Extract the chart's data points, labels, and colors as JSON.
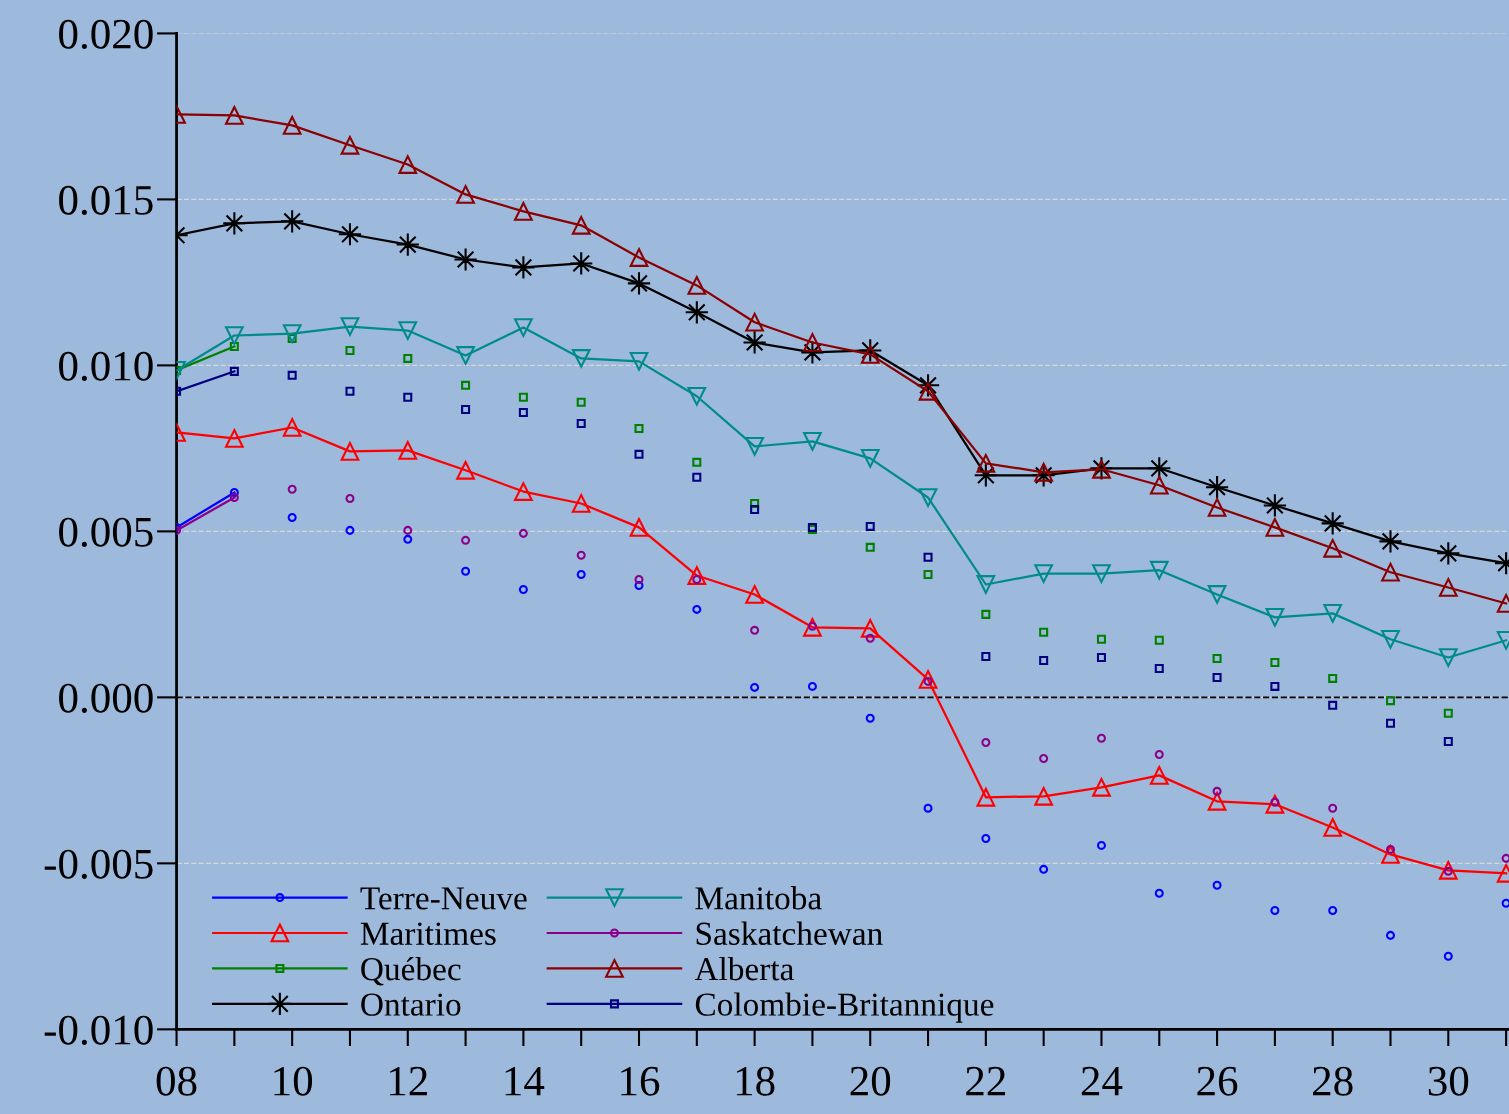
{
  "chart_data": {
    "type": "line",
    "x": [
      8,
      9,
      10,
      11,
      12,
      13,
      14,
      15,
      16,
      17,
      18,
      19,
      20,
      21,
      22,
      23,
      24,
      25,
      26,
      27,
      28,
      29,
      30,
      31
    ],
    "xlim": [
      8,
      31.05
    ],
    "xticks": [
      {
        "value": 8,
        "label": "08"
      },
      {
        "value": 10,
        "label": "10"
      },
      {
        "value": 12,
        "label": "12"
      },
      {
        "value": 14,
        "label": "14"
      },
      {
        "value": 16,
        "label": "16"
      },
      {
        "value": 18,
        "label": "18"
      },
      {
        "value": 20,
        "label": "20"
      },
      {
        "value": 22,
        "label": "22"
      },
      {
        "value": 24,
        "label": "24"
      },
      {
        "value": 26,
        "label": "26"
      },
      {
        "value": 28,
        "label": "28"
      },
      {
        "value": 30,
        "label": "30"
      }
    ],
    "ylim": [
      -0.01,
      0.02
    ],
    "yticks": [
      {
        "value": -0.01,
        "label": "-0.010"
      },
      {
        "value": -0.005,
        "label": "-0.005"
      },
      {
        "value": 0.0,
        "label": "0.000"
      },
      {
        "value": 0.005,
        "label": "0.005"
      },
      {
        "value": 0.01,
        "label": "0.010"
      },
      {
        "value": 0.015,
        "label": "0.015"
      },
      {
        "value": 0.02,
        "label": "0.020"
      }
    ],
    "grid": "y",
    "legend": "bottom left",
    "ref_lines": [
      {
        "axis": "y",
        "value": 0.0,
        "color": "#000000",
        "line_style": "dashed"
      }
    ],
    "series": [
      {
        "name": "Terre-Neuve",
        "color": "#0000ff",
        "marker": "circle",
        "values": [
          0.00512,
          0.00617,
          null,
          null,
          null,
          null,
          null,
          null,
          null,
          null,
          null,
          null,
          null,
          null,
          null,
          null,
          null,
          null,
          null,
          null,
          null,
          null,
          null,
          null
        ]
      },
      {
        "type": "scatter",
        "color": "#0000ff",
        "marker": "circle",
        "values": [
          null,
          null,
          0.00542,
          0.00503,
          0.00476,
          0.0038,
          0.00325,
          0.0037,
          0.00337,
          0.00265,
          0.0003,
          0.00033,
          -0.00063,
          -0.00334,
          -0.00425,
          -0.00518,
          -0.00446,
          -0.0059,
          -0.00566,
          -0.00642,
          -0.00642,
          -0.00717,
          -0.0078,
          -0.0062
        ]
      },
      {
        "name": "Maritimes",
        "color": "#ff0000",
        "marker": "triangle",
        "values": [
          0.00798,
          0.0078,
          0.00813,
          0.00741,
          0.00744,
          0.00684,
          0.0062,
          0.00584,
          0.00512,
          0.00367,
          0.0031,
          0.00211,
          0.00208,
          0.00054,
          -0.00301,
          -0.00298,
          -0.00271,
          -0.00235,
          -0.00313,
          -0.00322,
          -0.00392,
          -0.00473,
          -0.00521,
          -0.0053
        ]
      },
      {
        "name": "Québec",
        "color": "#008000",
        "marker": "square",
        "values": [
          0.00985,
          0.01057,
          null,
          null,
          null,
          null,
          null,
          null,
          null,
          null,
          null,
          null,
          null,
          null,
          null,
          null,
          null,
          null,
          null,
          null,
          null,
          null,
          null,
          null
        ]
      },
      {
        "type": "scatter",
        "color": "#008000",
        "marker": "square",
        "values": [
          null,
          null,
          0.01081,
          0.01045,
          0.01021,
          0.0094,
          0.00904,
          0.00889,
          0.0081,
          0.00708,
          0.00584,
          0.00506,
          0.00452,
          0.0037,
          0.0025,
          0.00196,
          0.00175,
          0.00172,
          0.00117,
          0.00105,
          0.00057,
          -0.0001,
          -0.00048,
          null
        ]
      },
      {
        "name": "Ontario",
        "color": "#000000",
        "marker": "star",
        "values": [
          0.01392,
          0.01428,
          0.01434,
          0.01395,
          0.01364,
          0.01319,
          0.01295,
          0.01307,
          0.01247,
          0.0116,
          0.01069,
          0.01039,
          0.01045,
          0.0094,
          0.00669,
          0.00669,
          0.0069,
          0.0069,
          0.00633,
          0.00578,
          0.00524,
          0.0047,
          0.00434,
          0.00404
        ]
      },
      {
        "name": "Manitoba",
        "color": "#008b8b",
        "marker": "triangle_down",
        "values": [
          0.00985,
          0.0109,
          0.01096,
          0.01117,
          0.01105,
          0.0103,
          0.01114,
          0.01021,
          0.01012,
          0.00907,
          0.00756,
          0.00771,
          0.0072,
          0.00602,
          0.0034,
          0.00373,
          0.00373,
          0.00383,
          0.0031,
          0.00241,
          0.00253,
          0.00175,
          0.0012,
          0.00172
        ]
      },
      {
        "name": "Saskatchewan",
        "color": "#8b008b",
        "marker": "circle",
        "values": [
          0.00503,
          0.00602,
          null,
          null,
          null,
          null,
          null,
          null,
          null,
          null,
          null,
          null,
          null,
          null,
          null,
          null,
          null,
          null,
          null,
          null,
          null,
          null,
          null,
          null
        ]
      },
      {
        "type": "scatter",
        "color": "#8b008b",
        "marker": "circle",
        "values": [
          null,
          null,
          0.00627,
          0.00599,
          0.00503,
          0.00473,
          0.00494,
          0.00428,
          0.00355,
          0.00355,
          0.00202,
          0.00214,
          0.00178,
          0.00048,
          -0.00136,
          -0.00184,
          -0.00123,
          -0.00172,
          -0.00283,
          -0.00316,
          -0.00334,
          -0.00458,
          -0.00524,
          -0.00485
        ]
      },
      {
        "name": "Alberta",
        "color": "#8b0000",
        "marker": "triangle",
        "values": [
          0.01756,
          0.01753,
          0.01723,
          0.01663,
          0.01605,
          0.01515,
          0.01464,
          0.01422,
          0.01325,
          0.01241,
          0.0113,
          0.01069,
          0.01033,
          0.00922,
          0.00705,
          0.00678,
          0.00687,
          0.00639,
          0.00572,
          0.00512,
          0.00449,
          0.00377,
          0.00331,
          0.00283
        ]
      },
      {
        "name": "Colombie-Britannique",
        "color": "#000080",
        "marker": "square",
        "values": [
          0.00922,
          0.00982,
          null,
          null,
          null,
          null,
          null,
          null,
          null,
          null,
          null,
          null,
          null,
          null,
          null,
          null,
          null,
          null,
          null,
          null,
          null,
          null,
          null,
          null
        ]
      },
      {
        "type": "scatter",
        "color": "#000080",
        "marker": "square",
        "values": [
          null,
          null,
          0.0097,
          0.00922,
          0.00904,
          0.00867,
          0.00858,
          0.00825,
          0.00732,
          0.00663,
          0.00566,
          0.00512,
          0.00515,
          0.00422,
          0.00123,
          0.00111,
          0.0012,
          0.00087,
          0.0006,
          0.00033,
          -0.00024,
          -0.00078,
          -0.00133,
          null
        ]
      }
    ]
  }
}
